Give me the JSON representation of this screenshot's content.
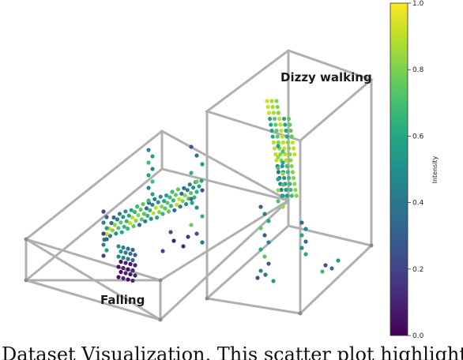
{
  "chart_data": {
    "type": "scatter",
    "title": "",
    "series": [
      {
        "name": "Falling"
      },
      {
        "name": "Dizzy walking"
      }
    ],
    "colorbar": {
      "label": "Intensity",
      "min": 0.0,
      "max": 1.0,
      "ticks": [
        "0.0",
        "0.2",
        "0.4",
        "0.6",
        "0.8",
        "1.0"
      ],
      "colormap": "viridis"
    }
  },
  "labels": {
    "falling": "Falling",
    "dizzy": "Dizzy walking"
  },
  "caption": "Dataset Visualization. This scatter plot highlights the"
}
